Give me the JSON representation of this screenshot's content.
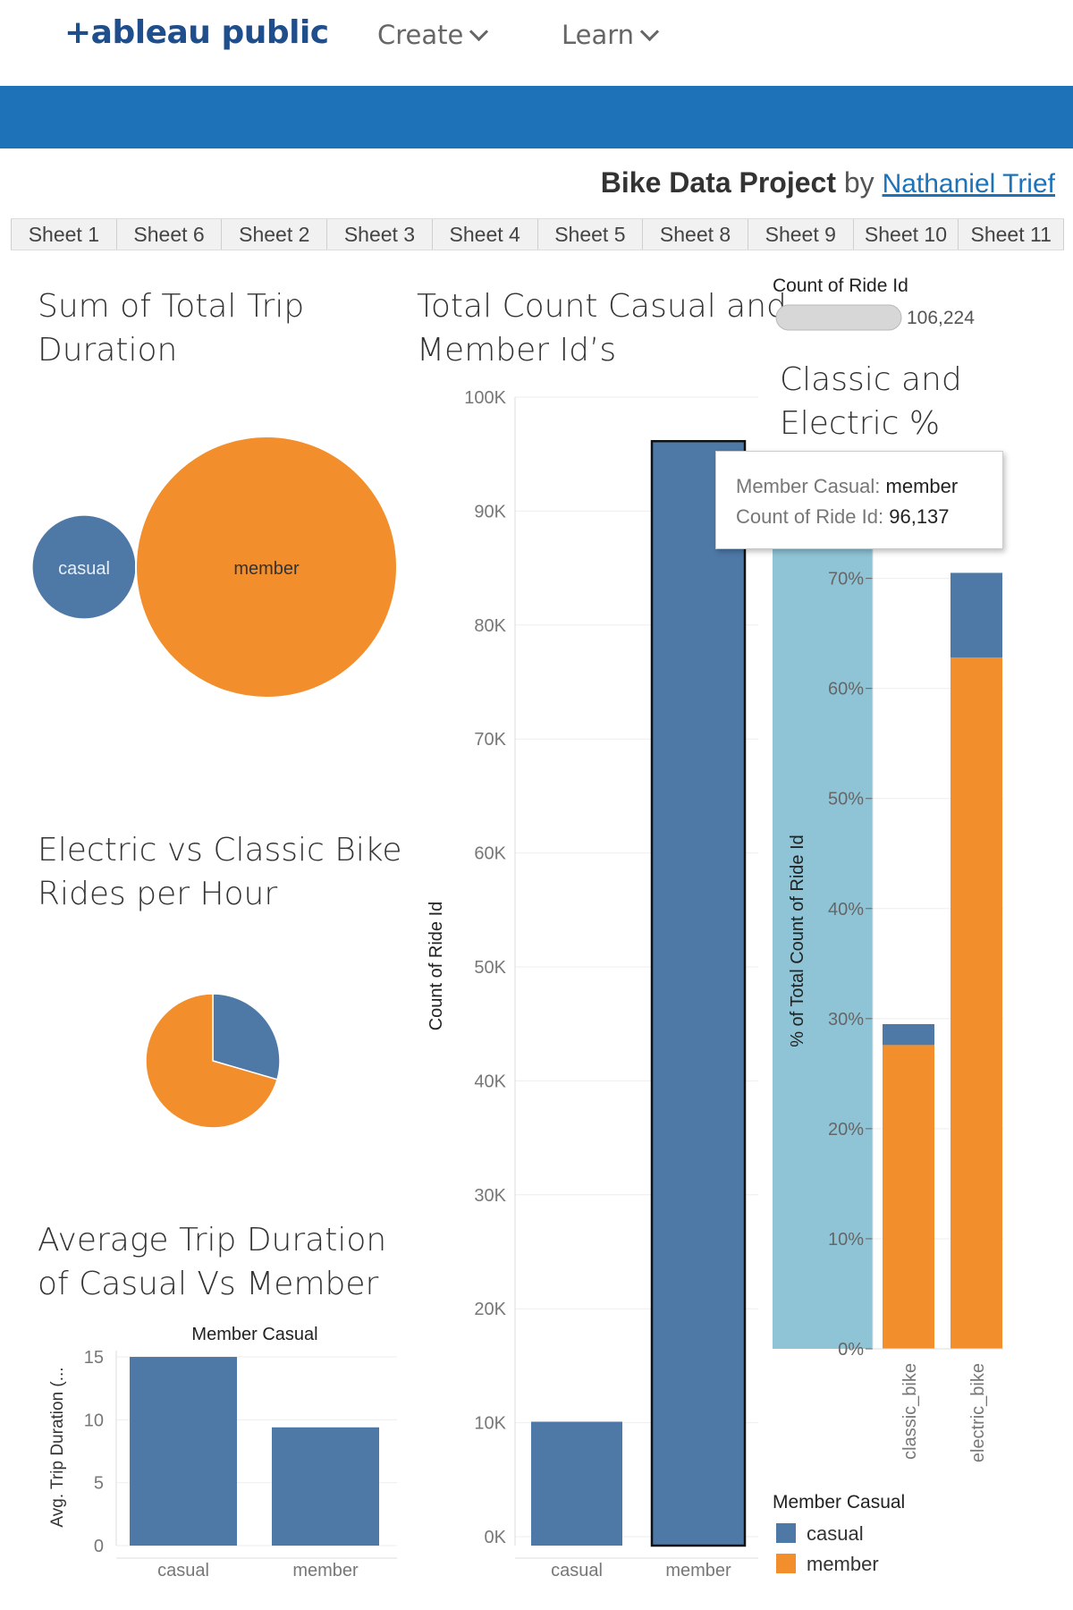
{
  "nav": {
    "logo": "+ableau public",
    "create": "Create",
    "learn": "Learn"
  },
  "project": {
    "title": "Bike Data Project",
    "by": "by",
    "author": "Nathaniel Trief"
  },
  "tabs": [
    "Sheet 1",
    "Sheet 6",
    "Sheet 2",
    "Sheet 3",
    "Sheet 4",
    "Sheet 5",
    "Sheet 8",
    "Sheet 9",
    "Sheet 10",
    "Sheet 11"
  ],
  "titles": {
    "trip_duration_1": "Sum of Total Trip",
    "trip_duration_2": "Duration",
    "total_count_1": "Total Count Casual and",
    "total_count_2": "Member Id’s",
    "classic_1": "Classic and",
    "classic_2": "Electric %",
    "electric_1": "Electric vs Classic Bike",
    "electric_2": "Rides per Hour",
    "avg_1": "Average Trip Duration",
    "avg_2": "of Casual Vs Member"
  },
  "ride_count": {
    "label": "Count of Ride Id",
    "value": "106,224"
  },
  "tooltip": {
    "k1": "Member Casual:",
    "v1": "member",
    "k2": "Count of Ride Id:",
    "v2": "96,137"
  },
  "legend": {
    "title": "Member Casual",
    "casual": "casual",
    "member": "member"
  },
  "colors": {
    "casual": "#4e79a7",
    "member": "#f28e2b",
    "highlight": "#8ec4d6",
    "brand": "#1e72b8"
  },
  "chart_data": [
    {
      "id": "bubbles",
      "type": "bubble",
      "title": "Sum of Total Trip Duration",
      "categories": [
        "casual",
        "member"
      ],
      "values": [
        0.16,
        1.0
      ]
    },
    {
      "id": "pie",
      "type": "pie",
      "title": "Electric vs Classic Bike Rides per Hour",
      "slices": [
        {
          "color": "#4e79a7",
          "value": 0.295
        },
        {
          "color": "#f28e2b",
          "value": 0.705
        }
      ]
    },
    {
      "id": "avg",
      "type": "bar",
      "title": "Average Trip Duration of Casual Vs Member",
      "header": "Member Casual",
      "ylabel": "Avg. Trip Duration (...",
      "categories": [
        "casual",
        "member"
      ],
      "values": [
        15,
        9.4
      ],
      "yticks": [
        "0",
        "5",
        "10",
        "15"
      ],
      "ytick_values": [
        0,
        5,
        10,
        15
      ],
      "ylim": [
        0,
        15.5
      ]
    },
    {
      "id": "count",
      "type": "bar",
      "title": "Total Count Casual and Member Id’s",
      "ylabel": "Count of Ride Id",
      "categories": [
        "casual",
        "member"
      ],
      "values": [
        10087,
        96137
      ],
      "yticks": [
        "0K",
        "10K",
        "20K",
        "30K",
        "40K",
        "50K",
        "60K",
        "70K",
        "80K",
        "90K",
        "100K"
      ],
      "ytick_values": [
        0,
        10000,
        20000,
        30000,
        40000,
        50000,
        60000,
        70000,
        80000,
        90000,
        100000
      ],
      "ylim": [
        0,
        100000
      ]
    },
    {
      "id": "pct",
      "type": "bar",
      "title": "Classic and Electric %",
      "ylabel": "% of Total Count of Ride Id",
      "categories": [
        "classic_bike",
        "electric_bike"
      ],
      "series": [
        {
          "name": "member",
          "color": "#f28e2b",
          "values": [
            27.6,
            62.8
          ]
        },
        {
          "name": "casual",
          "color": "#4e79a7",
          "values": [
            1.9,
            7.7
          ]
        }
      ],
      "yticks": [
        "0%",
        "10%",
        "20%",
        "30%",
        "40%",
        "50%",
        "60%",
        "70%"
      ],
      "ytick_values": [
        0,
        10,
        20,
        30,
        40,
        50,
        60,
        70
      ],
      "ylim": [
        0,
        72
      ]
    }
  ]
}
